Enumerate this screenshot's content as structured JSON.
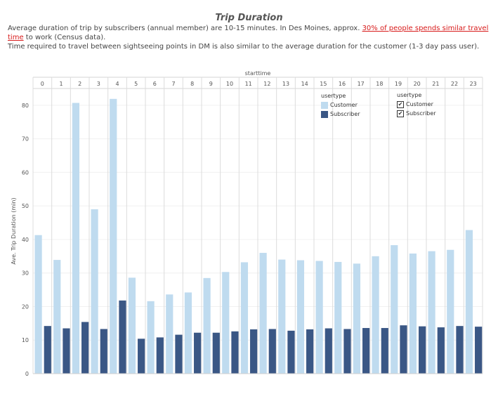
{
  "title": "Trip Duration",
  "description": {
    "line1_before": "Average duration of trip by subscribers (annual member) are 10-15 minutes. In Des Moines, approx. ",
    "line1_link": "30% of people spends similar travel time",
    "line1_after": " to work (Census data).",
    "line2": "Time required to travel between sightseeing points in DM is also similar to the average duration for the customer (1-3 day pass user)."
  },
  "colors": {
    "customer": "#bfdbef",
    "subscriber": "#3a5785"
  },
  "legend": {
    "title": "usertype",
    "items": [
      "Customer",
      "Subscriber"
    ]
  },
  "filter": {
    "title": "usertype",
    "items": [
      {
        "label": "Customer",
        "checked": true
      },
      {
        "label": "Subscriber",
        "checked": true
      }
    ]
  },
  "chart_data": {
    "type": "bar",
    "xlabel": "starttime",
    "ylabel": "Ave. Trip Duration (min)",
    "ylim": [
      0,
      85
    ],
    "yticks": [
      0,
      10,
      20,
      30,
      40,
      50,
      60,
      70,
      80
    ],
    "grid": true,
    "legend_position": "top-right",
    "categories": [
      "0",
      "1",
      "2",
      "3",
      "4",
      "5",
      "6",
      "7",
      "8",
      "9",
      "10",
      "11",
      "12",
      "13",
      "14",
      "15",
      "16",
      "17",
      "18",
      "19",
      "20",
      "21",
      "22",
      "23"
    ],
    "series": [
      {
        "name": "Customer",
        "values": [
          41.3,
          33.9,
          80.7,
          49.0,
          81.9,
          28.6,
          21.6,
          23.6,
          24.2,
          28.5,
          30.3,
          33.2,
          36.0,
          34.0,
          33.8,
          33.6,
          33.3,
          32.8,
          35.0,
          38.3,
          35.8,
          36.5,
          36.9,
          42.8
        ]
      },
      {
        "name": "Subscriber",
        "values": [
          14.2,
          13.5,
          15.4,
          13.3,
          21.8,
          10.4,
          10.8,
          11.6,
          12.2,
          12.2,
          12.6,
          13.2,
          13.3,
          12.8,
          13.2,
          13.5,
          13.3,
          13.6,
          13.6,
          14.4,
          14.1,
          13.8,
          14.2,
          14.0
        ]
      }
    ]
  }
}
